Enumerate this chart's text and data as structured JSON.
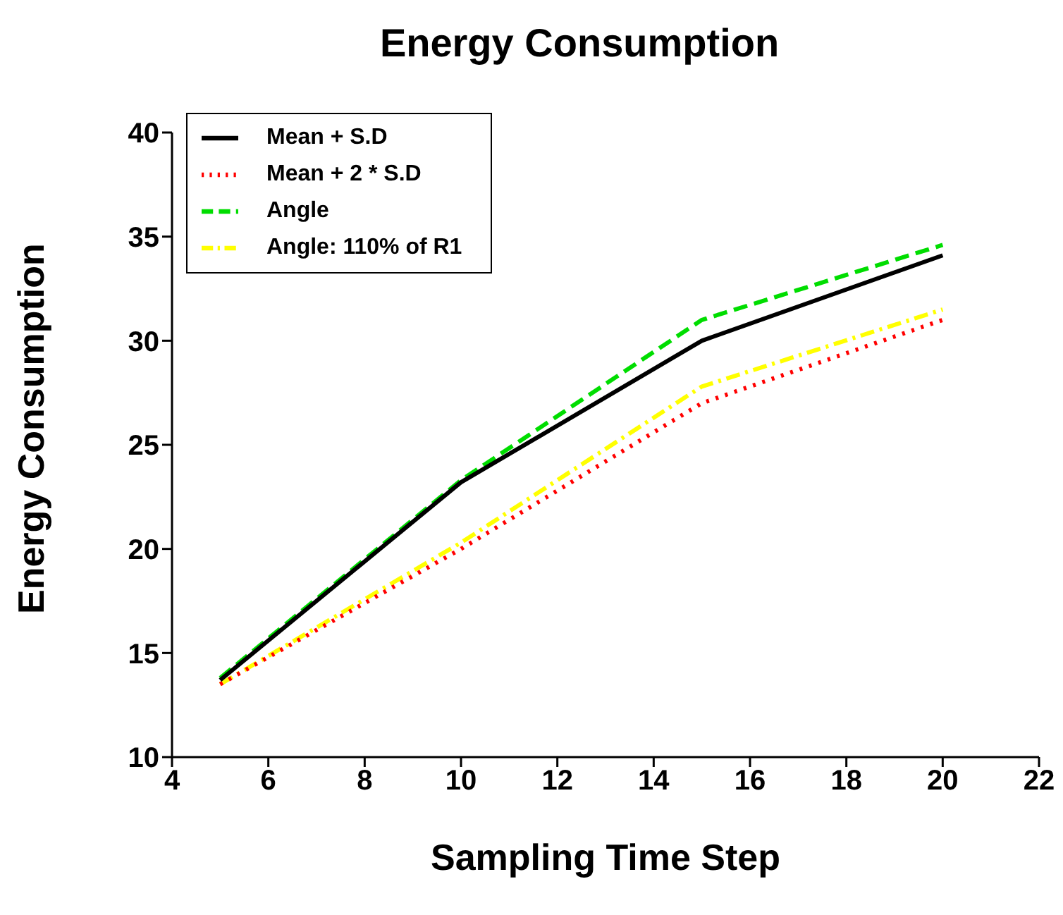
{
  "chart_data": {
    "type": "line",
    "title": "Energy Consumption",
    "xlabel": "Sampling Time Step",
    "ylabel": "Energy Consumption",
    "x": [
      5,
      10,
      15,
      20
    ],
    "series": [
      {
        "name": "Mean + S.D",
        "color": "#000000",
        "line_style": "solid",
        "values": [
          13.7,
          23.2,
          30.0,
          34.1
        ]
      },
      {
        "name": "Mean + 2 * S.D",
        "color": "#ff0000",
        "line_style": "dotted",
        "values": [
          13.5,
          20.0,
          27.0,
          31.0
        ]
      },
      {
        "name": "Angle",
        "color": "#00dd00",
        "line_style": "dashed",
        "values": [
          13.8,
          23.3,
          31.0,
          34.6
        ]
      },
      {
        "name": "Angle: 110% of R1",
        "color": "#ffff00",
        "line_style": "dashdot",
        "values": [
          13.5,
          20.3,
          27.8,
          31.5
        ]
      }
    ],
    "xlim": [
      4,
      22
    ],
    "xticks": [
      4,
      6,
      8,
      10,
      12,
      14,
      16,
      18,
      20,
      22
    ],
    "ylim": [
      10,
      40
    ],
    "yticks": [
      10,
      15,
      20,
      25,
      30,
      35,
      40
    ],
    "grid": false,
    "legend": "top left",
    "marker": "none"
  }
}
